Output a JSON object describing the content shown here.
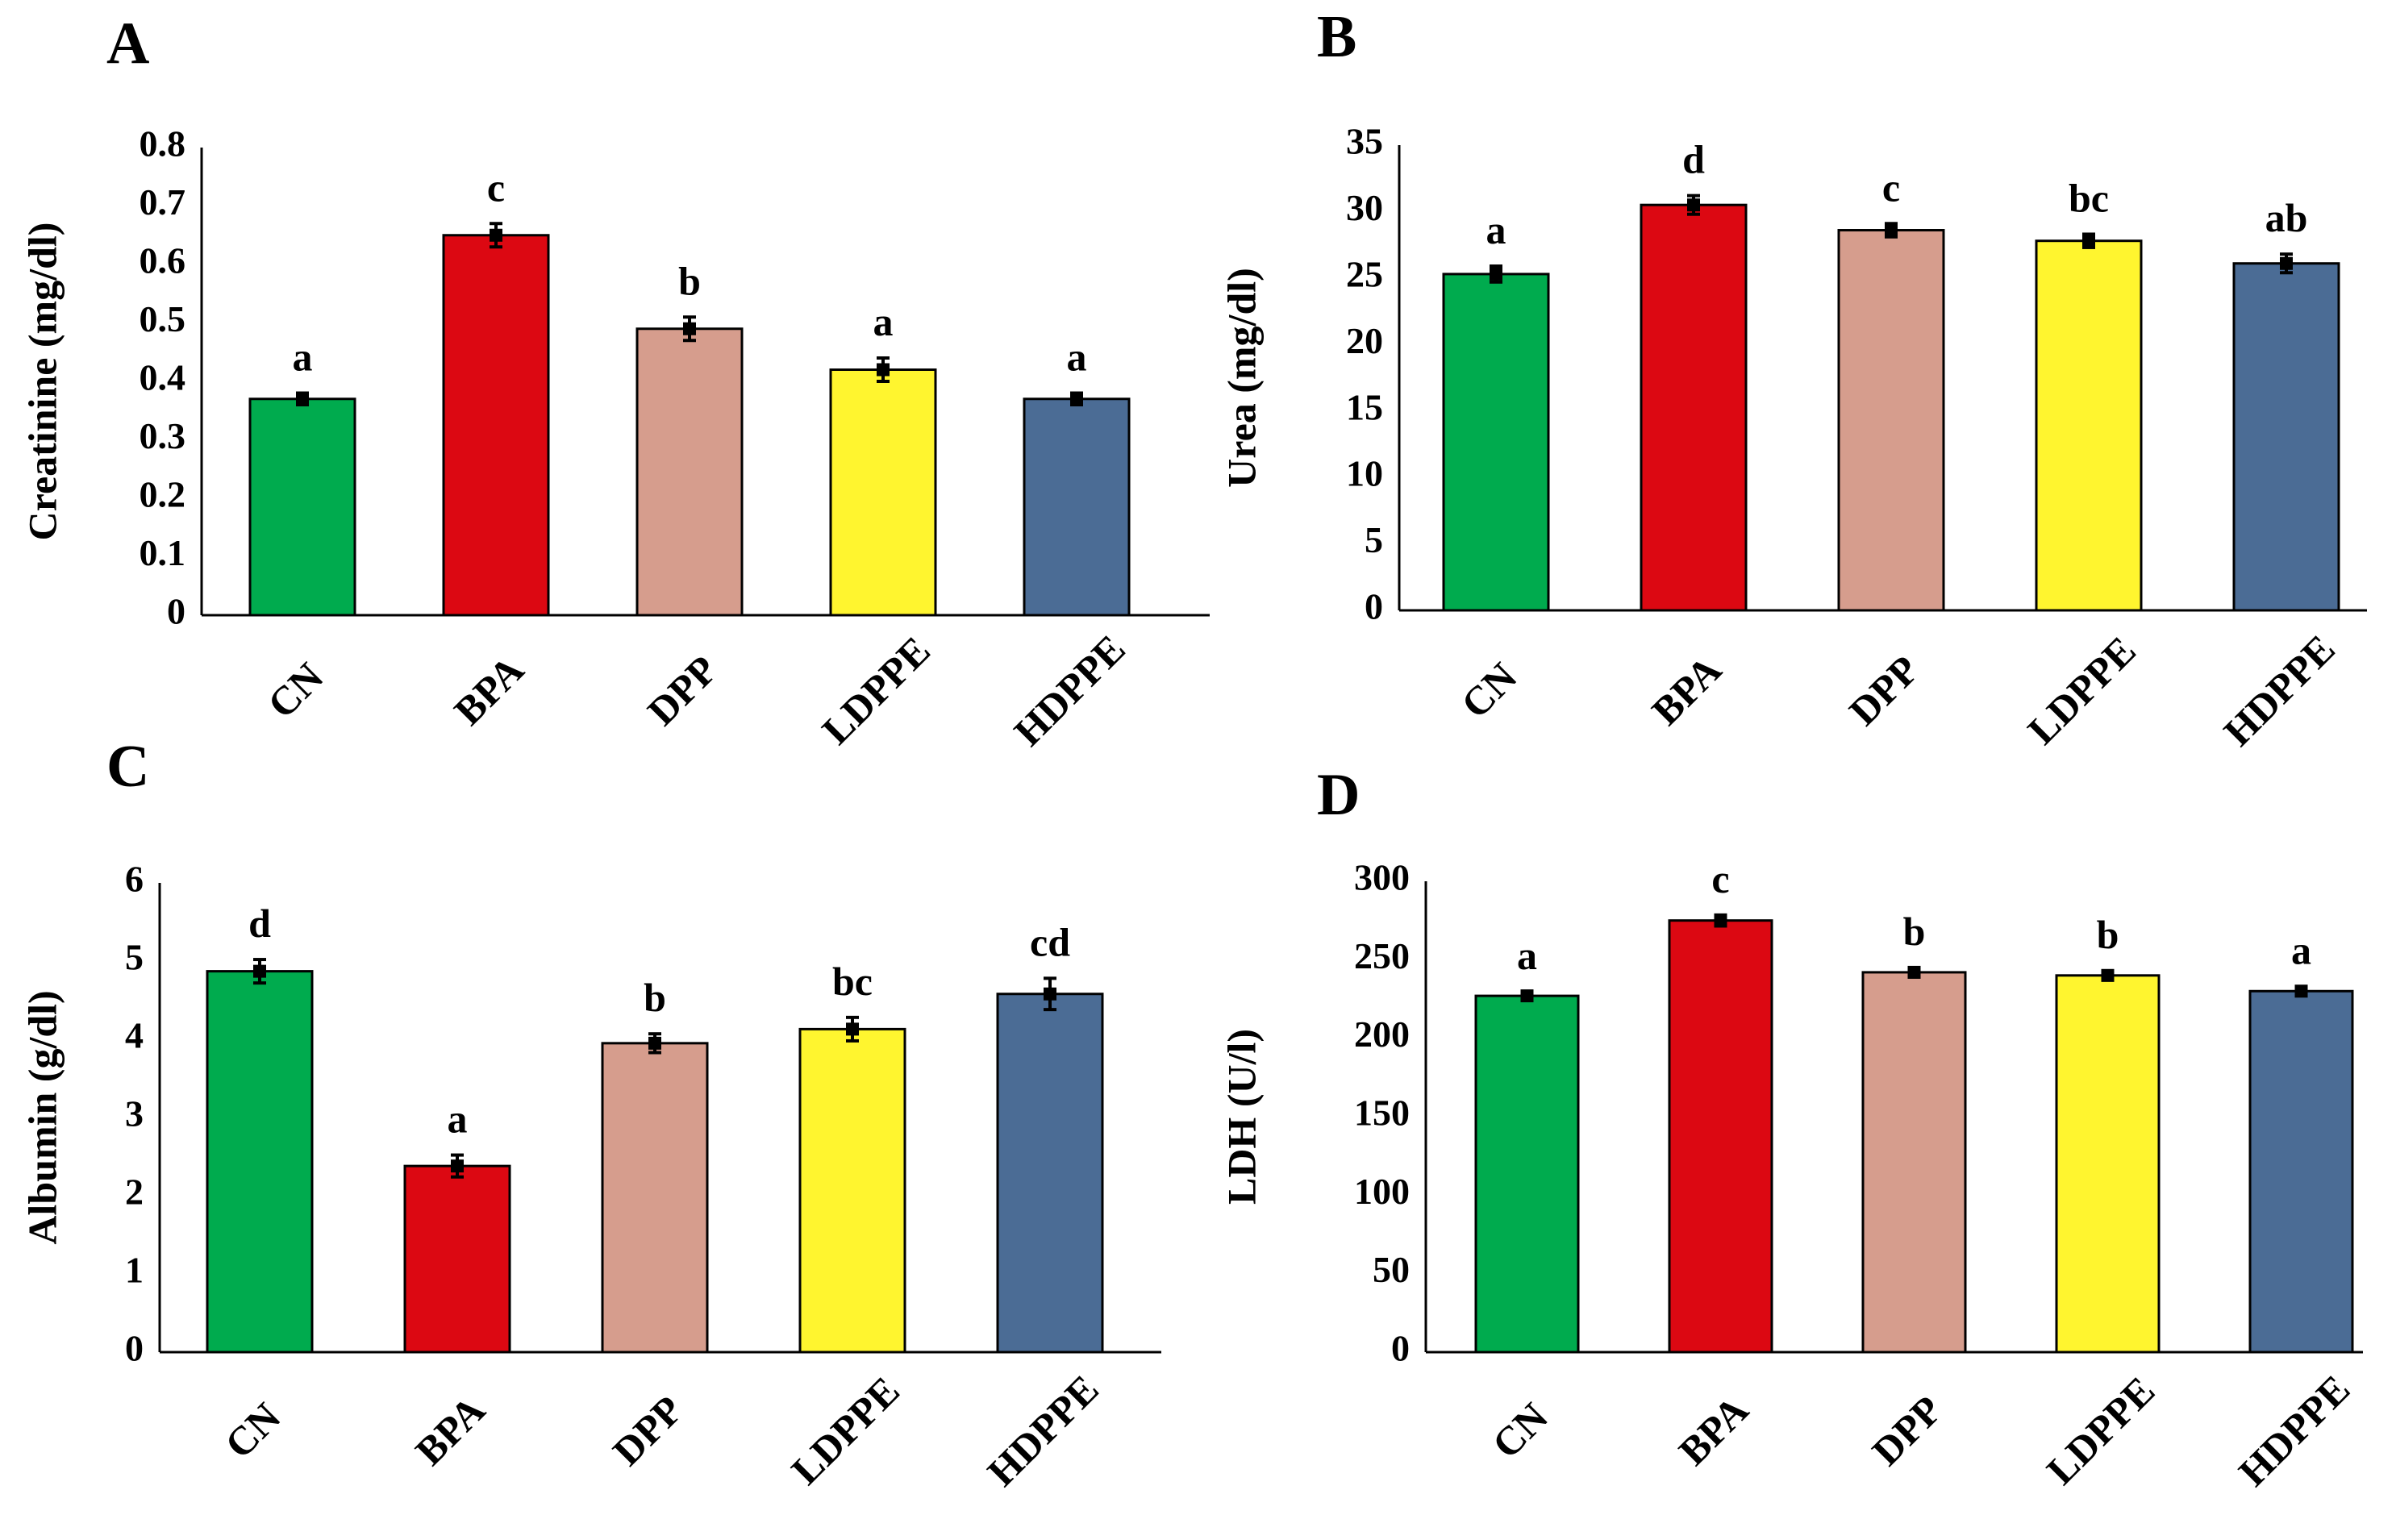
{
  "colors": {
    "CN": "#00ab4e",
    "BPA": "#dc0812",
    "DPP": "#d69d8d",
    "LDPPE": "#fff52f",
    "HDPPE": "#4b6c95",
    "axis": "#000000"
  },
  "chart_data": [
    {
      "panel_label": "A",
      "type": "bar",
      "title": "",
      "ylabel": "Creatinine (mg/dl)",
      "xlabel": "",
      "categories": [
        "CN",
        "BPA",
        "DPP",
        "LDPPE",
        "HDPPE"
      ],
      "values": [
        0.37,
        0.65,
        0.49,
        0.42,
        0.37
      ],
      "errors": [
        0.01,
        0.02,
        0.02,
        0.02,
        0.01
      ],
      "significance_letters": [
        "a",
        "c",
        "b",
        "a",
        "a"
      ],
      "ylim": [
        0,
        0.8
      ],
      "yticks": [
        "0",
        "0.1",
        "0.2",
        "0.3",
        "0.4",
        "0.5",
        "0.6",
        "0.7",
        "0.8"
      ],
      "grid": false,
      "legend": "none"
    },
    {
      "panel_label": "B",
      "type": "bar",
      "title": "",
      "ylabel": "Urea (mg/dl)",
      "xlabel": "",
      "categories": [
        "CN",
        "BPA",
        "DPP",
        "LDPPE",
        "HDPPE"
      ],
      "values": [
        25.3,
        30.5,
        28.6,
        27.8,
        26.1
      ],
      "errors": [
        0.6,
        0.7,
        0.5,
        0.5,
        0.7
      ],
      "significance_letters": [
        "a",
        "d",
        "c",
        "bc",
        "ab"
      ],
      "ylim": [
        0,
        35
      ],
      "yticks": [
        "0",
        "5",
        "10",
        "15",
        "20",
        "25",
        "30",
        "35"
      ],
      "grid": false,
      "legend": "none"
    },
    {
      "panel_label": "C",
      "type": "bar",
      "title": "",
      "ylabel": "Albumin (g/dl)",
      "xlabel": "",
      "categories": [
        "CN",
        "BPA",
        "DPP",
        "LDPPE",
        "HDPPE"
      ],
      "values": [
        4.87,
        2.38,
        3.95,
        4.13,
        4.58
      ],
      "errors": [
        0.15,
        0.14,
        0.12,
        0.15,
        0.2
      ],
      "significance_letters": [
        "d",
        "a",
        "b",
        "bc",
        "cd"
      ],
      "ylim": [
        0,
        6
      ],
      "yticks": [
        "0",
        "1",
        "2",
        "3",
        "4",
        "5",
        "6"
      ],
      "grid": false,
      "legend": "none"
    },
    {
      "panel_label": "D",
      "type": "bar",
      "title": "",
      "ylabel": "LDH (U/l)",
      "xlabel": "",
      "categories": [
        "CN",
        "BPA",
        "DPP",
        "LDPPE",
        "HDPPE"
      ],
      "values": [
        227,
        275,
        242,
        240,
        230
      ],
      "errors": [
        2.5,
        3.5,
        3,
        3,
        3
      ],
      "significance_letters": [
        "a",
        "c",
        "b",
        "b",
        "a"
      ],
      "ylim": [
        0,
        300
      ],
      "yticks": [
        "0",
        "50",
        "100",
        "150",
        "200",
        "250",
        "300"
      ],
      "grid": false,
      "legend": "none"
    }
  ]
}
